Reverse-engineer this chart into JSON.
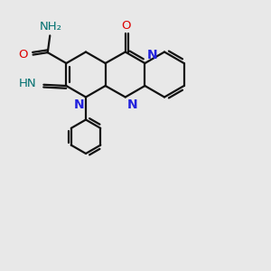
{
  "bg": "#e8e8e8",
  "bond_lw": 1.6,
  "N_color": "#2222dd",
  "O_color": "#dd0000",
  "NH_color": "#007070",
  "bond_color": "#111111",
  "font_size": 9.5,
  "figsize": [
    3.0,
    3.0
  ],
  "dpi": 100,
  "xlim": [
    -0.05,
    1.05
  ],
  "ylim": [
    -0.35,
    0.85
  ],
  "ring_r": 0.1,
  "centers_A": [
    0.28,
    0.52
  ],
  "centers_B": [
    0.455,
    0.52
  ],
  "centers_C": [
    0.628,
    0.52
  ]
}
